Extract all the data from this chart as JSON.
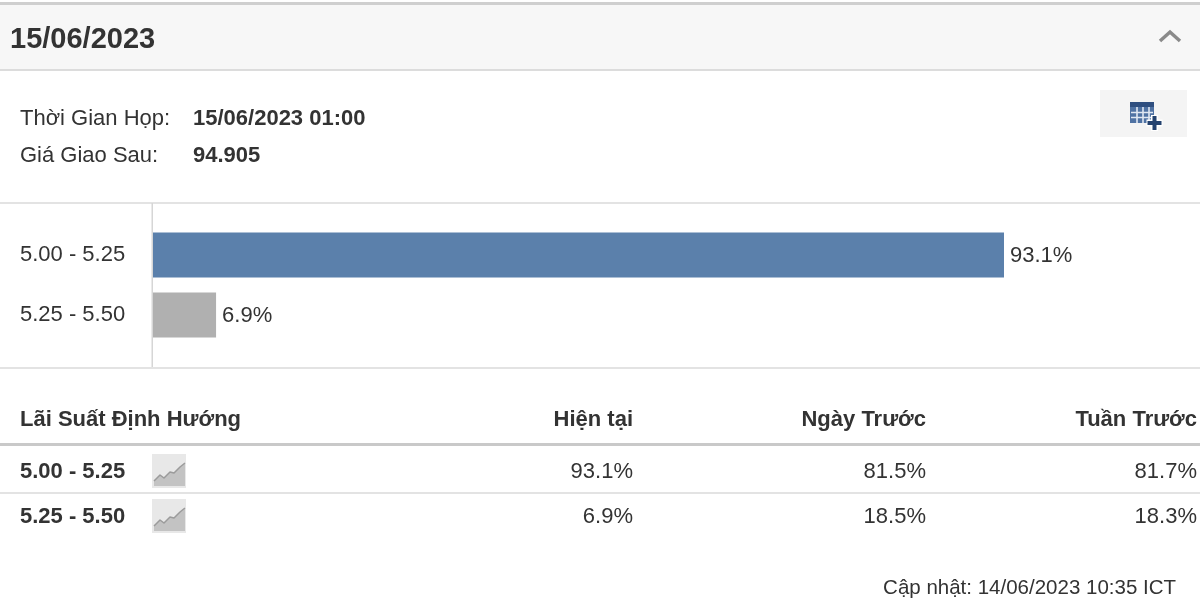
{
  "chart_data": [
    {
      "type": "other",
      "title": "15/06/2023",
      "annotations": [
        "Thời Gian Họp:",
        "15/06/2023 01:00",
        "Giá Giao Sau:",
        "94.905"
      ]
    },
    {
      "type": "bar",
      "orientation": "horizontal",
      "categories": [
        "5.00 - 5.25",
        "5.25 - 5.50"
      ],
      "values": [
        93.1,
        6.9
      ],
      "colors": [
        "#5b80ab",
        "#b0b0b0"
      ],
      "value_labels": [
        "93.1%",
        "6.9%"
      ],
      "tick_labels": "y"
    },
    {
      "type": "other",
      "xlabel": "Lãi Suất Định Hướng",
      "categories": [
        "5.00 - 5.25",
        "5.25 - 5.50"
      ],
      "series": [
        {
          "name": "Hiện tại",
          "values": [
            93.1,
            6.9
          ],
          "value_labels": [
            "93.1%",
            "6.9%"
          ]
        },
        {
          "name": "Ngày Trước",
          "values": [
            81.5,
            18.5
          ],
          "value_labels": [
            "81.5%",
            "18.5%"
          ]
        },
        {
          "name": "Tuần Trước",
          "values": [
            81.7,
            18.3
          ],
          "value_labels": [
            "81.7%",
            "18.3%"
          ]
        }
      ],
      "annotations": [
        "Cập nhật: 14/06/2023 10:35 ICT"
      ]
    }
  ]
}
